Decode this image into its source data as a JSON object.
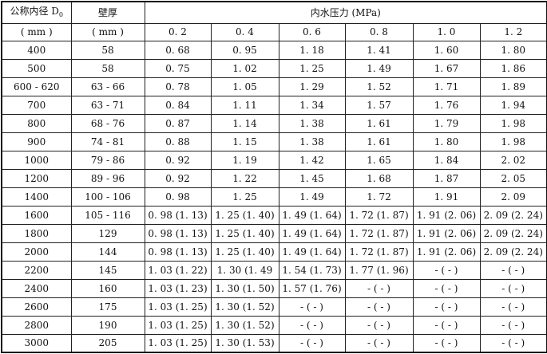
{
  "table": {
    "header": {
      "diameter_label": "公称内径 D",
      "diameter_sub": "0",
      "diameter_unit": "( mm )",
      "thickness_label": "壁厚",
      "thickness_unit": "( mm )",
      "pressure_label": "内水压力 (MPa)",
      "pressures": [
        "0. 2",
        "0. 4",
        "0. 6",
        "0. 8",
        "1. 0",
        "1. 2"
      ]
    },
    "rows": [
      [
        "400",
        "58",
        "0. 68",
        "0. 95",
        "1. 18",
        "1. 41",
        "1. 60",
        "1. 80"
      ],
      [
        "500",
        "58",
        "0. 75",
        "1. 02",
        "1. 25",
        "1. 49",
        "1. 67",
        "1. 86"
      ],
      [
        "600 - 620",
        "63 - 66",
        "0. 78",
        "1. 05",
        "1. 29",
        "1. 52",
        "1. 71",
        "1. 89"
      ],
      [
        "700",
        "63 - 71",
        "0. 84",
        "1. 11",
        "1. 34",
        "1. 57",
        "1. 76",
        "1. 94"
      ],
      [
        "800",
        "68 - 76",
        "0. 87",
        "1. 14",
        "1. 38",
        "1. 61",
        "1. 79",
        "1. 98"
      ],
      [
        "900",
        "74 - 81",
        "0. 88",
        "1. 15",
        "1. 38",
        "1. 61",
        "1. 80",
        "1. 98"
      ],
      [
        "1000",
        "79 - 86",
        "0. 92",
        "1. 19",
        "1. 42",
        "1. 65",
        "1. 84",
        "2. 02"
      ],
      [
        "1200",
        "89 - 96",
        "0. 92",
        "1. 22",
        "1. 45",
        "1. 68",
        "1. 87",
        "2. 05"
      ],
      [
        "1400",
        "100 - 106",
        "0. 98",
        "1. 25",
        "1. 49",
        "1. 72",
        "1. 91",
        "2. 09"
      ],
      [
        "1600",
        "105 - 116",
        "0. 98 (1. 13)",
        "1. 25 (1. 40)",
        "1. 49 (1. 64)",
        "1. 72 (1. 87)",
        "1. 91 (2. 06)",
        "2. 09 (2. 24)"
      ],
      [
        "1800",
        "129",
        "0. 98 (1. 13)",
        "1. 25 (1. 40)",
        "1. 49 (1. 64)",
        "1. 72 (1. 87)",
        "1. 91 (2. 06)",
        "2. 09 (2. 24)"
      ],
      [
        "2000",
        "144",
        "0. 98 (1. 13)",
        "1. 25 (1. 40)",
        "1. 49 (1. 64)",
        "1. 72 (1. 87)",
        "1. 91 (2. 06)",
        "2. 09 (2. 24)"
      ],
      [
        "2200",
        "145",
        "1. 03 (1. 22)",
        "1. 30 (1. 49",
        "1. 54 (1. 73)",
        "1. 77 (1. 96)",
        "- ( - )",
        "- ( - )"
      ],
      [
        "2400",
        "160",
        "1. 03 (1. 23)",
        "1. 30 (1. 50)",
        "1. 57 (1. 76)",
        "- ( - )",
        "- ( - )",
        "- ( - )"
      ],
      [
        "2600",
        "175",
        "1. 03 (1. 25)",
        "1. 30 (1. 52)",
        "- ( - )",
        "- ( - )",
        "- ( - )",
        "- ( - )"
      ],
      [
        "2800",
        "190",
        "1. 03 (1. 25)",
        "1. 30 (1. 52)",
        "- ( - )",
        "- ( - )",
        "- ( - )",
        "- ( - )"
      ],
      [
        "3000",
        "205",
        "1. 03 (1. 25)",
        "1. 30 (1. 53)",
        "- ( - )",
        "- ( - )",
        "- ( - )",
        "- ( - )"
      ]
    ]
  }
}
